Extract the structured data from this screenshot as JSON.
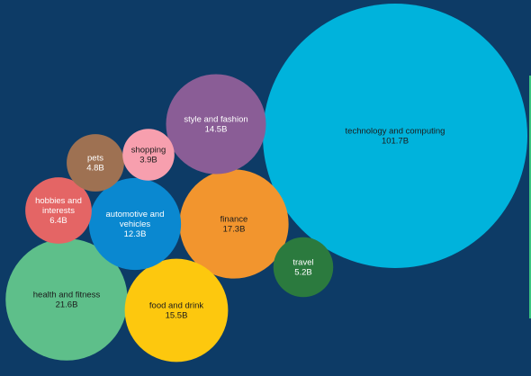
{
  "chart_data": {
    "type": "bubble",
    "title": "",
    "series": [
      {
        "category": "technology and computing",
        "value": 101.7,
        "value_label": "101.7B",
        "color": "#00b3dc"
      },
      {
        "category": "health and fitness",
        "value": 21.6,
        "value_label": "21.6B",
        "color": "#5ebf8a"
      },
      {
        "category": "finance",
        "value": 17.3,
        "value_label": "17.3B",
        "color": "#f2952e"
      },
      {
        "category": "food and drink",
        "value": 15.5,
        "value_label": "15.5B",
        "color": "#fdc80e"
      },
      {
        "category": "style and fashion",
        "value": 14.5,
        "value_label": "14.5B",
        "color": "#8a5d96"
      },
      {
        "category": "automotive and vehicles",
        "value": 12.3,
        "value_label": "12.3B",
        "color": "#0a88d0"
      },
      {
        "category": "hobbies and interests",
        "value": 6.4,
        "value_label": "6.4B",
        "color": "#e46565"
      },
      {
        "category": "travel",
        "value": 5.2,
        "value_label": "5.2B",
        "color": "#2b7a3e"
      },
      {
        "category": "pets",
        "value": 4.8,
        "value_label": "4.8B",
        "color": "#9e7152"
      },
      {
        "category": "shopping",
        "value": 3.9,
        "value_label": "3.9B",
        "color": "#f79fae"
      }
    ],
    "label_color": "#1b1b1b",
    "label_color_dark_bubble": "#ffffff",
    "background": "#0d3b66"
  }
}
